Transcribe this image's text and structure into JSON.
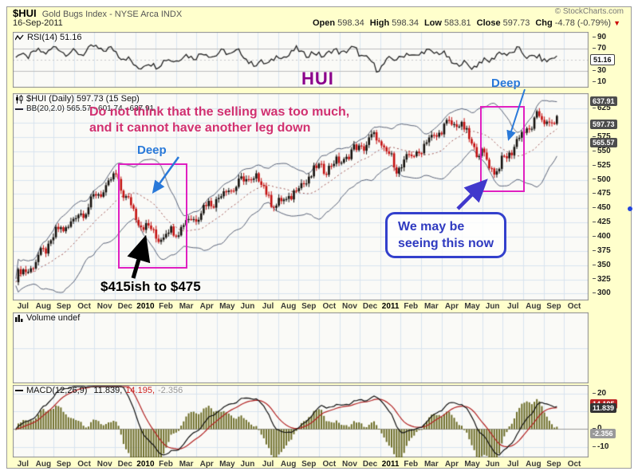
{
  "header": {
    "symbol": "$HUI",
    "name": "Gold Bugs Index - NYSE Arca INDX",
    "credit": "© StockCharts.com",
    "date": "16-Sep-2011",
    "quote": [
      {
        "label": "Open",
        "value": "598.34"
      },
      {
        "label": "High",
        "value": "598.34"
      },
      {
        "label": "Low",
        "value": "583.81"
      },
      {
        "label": "Close",
        "value": "597.73"
      },
      {
        "label": "Chg",
        "value": "-4.78 (-0.79%)"
      }
    ],
    "change_direction": "down"
  },
  "panels": {
    "rsi": {
      "label": "RSI(14) 51.16"
    },
    "main": {
      "title": "$HUI (Daily) 597.73 (15 Sep)",
      "bb_label": "BB(20,2.0) 565.57 - 601.74 - 637.91"
    },
    "volume": {
      "label": "Volume undef"
    },
    "macd": {
      "label": "MACD(12,26,9)",
      "v1": "11.839,",
      "v2": "14.195,",
      "v3": "-2.356"
    }
  },
  "annotations": {
    "hui": "HUI",
    "warning_line1": "Do not think that the selling was too much,",
    "warning_line2": "and it cannot have another leg down",
    "deep_left": "Deep",
    "deep_right": "Deep",
    "range_note": "$415ish to $475",
    "callout_line1": "We may be",
    "callout_line2": "seeing this now",
    "colors": {
      "hui": "#8B008B",
      "warning": "#D13070",
      "deep": "#2979D9",
      "magenta_box": "#E020C0",
      "callout": "#3340CC",
      "black_arrow": "#000000"
    }
  },
  "chart_data": {
    "type": "candlestick+indicators",
    "title": "$HUI Gold Bugs Index - NYSE Arca INDX, Daily, 16-Sep-2011",
    "months": [
      "Jul",
      "Aug",
      "Sep",
      "Oct",
      "Nov",
      "Dec",
      "2010",
      "Feb",
      "Mar",
      "Apr",
      "May",
      "Jun",
      "Jul",
      "Aug",
      "Sep",
      "Oct",
      "Nov",
      "Dec",
      "2011",
      "Feb",
      "Mar",
      "Apr",
      "May",
      "Jun",
      "Jul",
      "Aug",
      "Sep",
      "Oct"
    ],
    "axis_span_months": 28.2,
    "data_span_months": 26.5,
    "price": {
      "monthly_anchors": [
        328,
        355,
        405,
        432,
        470,
        505,
        435,
        400,
        412,
        438,
        468,
        492,
        505,
        452,
        482,
        518,
        528,
        554,
        575,
        520,
        548,
        582,
        604,
        552,
        515,
        568,
        608,
        598
      ],
      "last_close": 597.73,
      "ohlc_last": {
        "open": 598.34,
        "high": 598.34,
        "low": 583.81,
        "close": 597.73,
        "chg": -4.78,
        "chg_pct": -0.79
      },
      "bollinger": {
        "period": 20,
        "stdev": 2.0,
        "lower": 565.57,
        "mid": 601.74,
        "upper": 637.91
      }
    },
    "rsi": {
      "period": 14,
      "last": 51.16,
      "monthly": [
        55,
        62,
        70,
        60,
        72,
        65,
        38,
        42,
        52,
        58,
        60,
        65,
        40,
        52,
        66,
        58,
        65,
        68,
        35,
        55,
        60,
        66,
        42,
        40,
        58,
        66,
        52,
        51.16
      ]
    },
    "macd": {
      "params": "12,26,9",
      "macd": 11.839,
      "signal": 14.195,
      "hist": -2.356
    },
    "volume": {
      "status": "undef"
    },
    "axes": {
      "main_range": [
        288,
        652
      ],
      "main_ticks": [
        625,
        575,
        550,
        525,
        500,
        475,
        450,
        425,
        400,
        375,
        350,
        325,
        300
      ],
      "main_grid_step": 25,
      "main_boxes": [
        {
          "v": 637.91,
          "bg": "#4d4d4d"
        },
        {
          "v": 597.73,
          "bg": "#4d4d4d"
        },
        {
          "v": 565.57,
          "bg": "#4d4d4d"
        }
      ],
      "rsi_range": [
        0,
        100
      ],
      "rsi_ticks": [
        90,
        70,
        30,
        10
      ],
      "rsi_boxes": [
        {
          "v": 51.16,
          "bg": "#ffffff",
          "fg": "#111111",
          "border": "#444444"
        }
      ],
      "macd_range": [
        -16,
        25
      ],
      "macd_ticks": [
        20,
        10,
        0,
        -10
      ],
      "macd_boxes": [
        {
          "v": 14.195,
          "bg": "#bb2222"
        },
        {
          "v": 11.839,
          "bg": "#333333"
        },
        {
          "v": -2.356,
          "bg": "#999999"
        }
      ]
    },
    "style": {
      "sheet_bg": "#FFFFCC",
      "plot_bg": "#FAFAF7",
      "grid": "#D8E4EF",
      "candle_up": "#14100c",
      "candle_down": "#C41010",
      "band": "#5A6378",
      "band_mid": "#A05858",
      "macd_hist": "#6E6E28",
      "macd_line": "#111111",
      "macd_signal": "#B22222",
      "rsi_line": "#222222"
    }
  }
}
